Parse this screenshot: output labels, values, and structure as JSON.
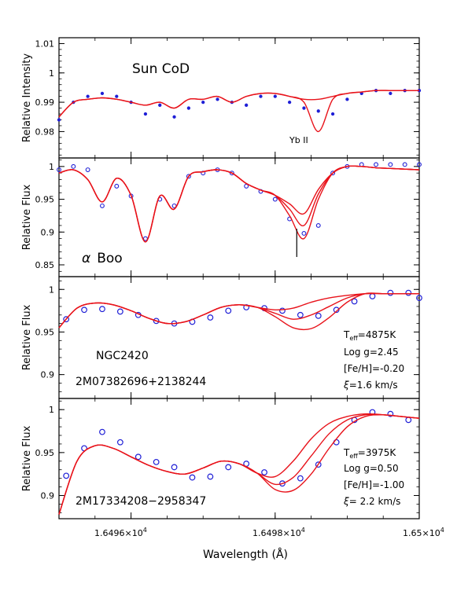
{
  "chart_data": [
    {
      "type": "line",
      "panel": "Sun CoD",
      "label": "Sun CoD",
      "ylabel": "Relative Intensity",
      "ylim": [
        0.971,
        1.012
      ],
      "yticks": [
        0.98,
        0.99,
        1,
        1.01
      ],
      "yticklabels": [
        "0.98",
        "0.99",
        "1",
        "1.01"
      ],
      "annotation": "Yb II",
      "series": [
        {
          "style": "points",
          "x": [
            16495.0,
            16495.2,
            16495.4,
            16495.6,
            16495.8,
            16496.0,
            16496.2,
            16496.4,
            16496.6,
            16496.8,
            16497.0,
            16497.2,
            16497.4,
            16497.6,
            16497.8,
            16498.0,
            16498.2,
            16498.4,
            16498.6,
            16498.8,
            16499.0,
            16499.2,
            16499.4,
            16499.6,
            16499.8,
            16500.0
          ],
          "y": [
            0.984,
            0.99,
            0.992,
            0.993,
            0.992,
            0.99,
            0.986,
            0.989,
            0.985,
            0.988,
            0.99,
            0.991,
            0.99,
            0.989,
            0.992,
            0.992,
            0.99,
            0.988,
            0.987,
            0.986,
            0.991,
            0.993,
            0.994,
            0.993,
            0.994,
            0.994
          ]
        },
        {
          "style": "line",
          "x": [
            16495.0,
            16495.2,
            16495.4,
            16495.6,
            16495.8,
            16496.0,
            16496.2,
            16496.4,
            16496.6,
            16496.8,
            16497.0,
            16497.2,
            16497.4,
            16497.6,
            16497.8,
            16498.0,
            16498.2,
            16498.4,
            16498.6,
            16498.8,
            16499.0,
            16499.2,
            16499.4,
            16499.6,
            16499.8,
            16500.0
          ],
          "y": [
            0.985,
            0.99,
            0.991,
            0.9915,
            0.991,
            0.99,
            0.989,
            0.99,
            0.988,
            0.991,
            0.991,
            0.992,
            0.99,
            0.992,
            0.993,
            0.993,
            0.992,
            0.99,
            0.98,
            0.991,
            0.993,
            0.9935,
            0.994,
            0.994,
            0.994,
            0.994
          ]
        },
        {
          "style": "line",
          "x": [
            16495.0,
            16495.2,
            16495.4,
            16495.6,
            16495.8,
            16496.0,
            16496.2,
            16496.4,
            16496.6,
            16496.8,
            16497.0,
            16497.2,
            16497.4,
            16497.6,
            16497.8,
            16498.0,
            16498.2,
            16498.4,
            16498.6,
            16498.8,
            16499.0,
            16499.2,
            16499.4,
            16499.6,
            16499.8,
            16500.0
          ],
          "y": [
            0.985,
            0.99,
            0.991,
            0.9915,
            0.991,
            0.99,
            0.989,
            0.99,
            0.988,
            0.991,
            0.991,
            0.992,
            0.99,
            0.992,
            0.993,
            0.993,
            0.992,
            0.991,
            0.991,
            0.992,
            0.993,
            0.9935,
            0.994,
            0.994,
            0.994,
            0.994
          ]
        }
      ]
    },
    {
      "type": "line",
      "panel": "alpha Boo",
      "label_symbol": "α",
      "label_text": "Boo",
      "ylabel": "Relative Flux",
      "ylim": [
        0.832,
        1.013
      ],
      "yticks": [
        0.85,
        0.9,
        0.95,
        1
      ],
      "yticklabels": [
        "0.85",
        "0.9",
        "0.95",
        "1"
      ],
      "marker_x": 16498.3,
      "series": [
        {
          "style": "points",
          "x": [
            16495.0,
            16495.2,
            16495.4,
            16495.6,
            16495.8,
            16496.0,
            16496.2,
            16496.4,
            16496.6,
            16496.8,
            16497.0,
            16497.2,
            16497.4,
            16497.6,
            16497.8,
            16498.0,
            16498.2,
            16498.4,
            16498.6,
            16498.8,
            16499.0,
            16499.2,
            16499.4,
            16499.6,
            16499.8,
            16500.0
          ],
          "y": [
            0.995,
            1.0,
            0.995,
            0.94,
            0.97,
            0.955,
            0.89,
            0.95,
            0.94,
            0.985,
            0.99,
            0.995,
            0.99,
            0.97,
            0.962,
            0.95,
            0.92,
            0.898,
            0.91,
            0.99,
            1.0,
            1.003,
            1.003,
            1.003,
            1.003,
            1.003
          ]
        },
        {
          "style": "line",
          "x": [
            16495.0,
            16495.2,
            16495.4,
            16495.6,
            16495.8,
            16496.0,
            16496.2,
            16496.4,
            16496.6,
            16496.8,
            16497.0,
            16497.2,
            16497.4,
            16497.6,
            16497.8,
            16498.0,
            16498.2,
            16498.4,
            16498.6,
            16498.8,
            16499.0,
            16499.2,
            16499.4,
            16499.6,
            16499.8,
            16500.0
          ],
          "y": [
            0.99,
            0.995,
            0.98,
            0.946,
            0.982,
            0.956,
            0.885,
            0.955,
            0.935,
            0.985,
            0.992,
            0.995,
            0.99,
            0.974,
            0.964,
            0.956,
            0.925,
            0.89,
            0.95,
            0.99,
            1.0,
            1.0,
            0.998,
            0.997,
            0.996,
            0.995
          ]
        },
        {
          "style": "line",
          "x": [
            16495.0,
            16495.2,
            16495.4,
            16495.6,
            16495.8,
            16496.0,
            16496.2,
            16496.4,
            16496.6,
            16496.8,
            16497.0,
            16497.2,
            16497.4,
            16497.6,
            16497.8,
            16498.0,
            16498.2,
            16498.4,
            16498.6,
            16498.8,
            16499.0,
            16499.2,
            16499.4,
            16499.6,
            16499.8,
            16500.0
          ],
          "y": [
            0.99,
            0.995,
            0.98,
            0.946,
            0.982,
            0.956,
            0.885,
            0.955,
            0.935,
            0.985,
            0.992,
            0.995,
            0.99,
            0.974,
            0.964,
            0.956,
            0.935,
            0.91,
            0.958,
            0.99,
            1.0,
            1.0,
            0.998,
            0.997,
            0.996,
            0.995
          ]
        },
        {
          "style": "line",
          "x": [
            16495.0,
            16495.2,
            16495.4,
            16495.6,
            16495.8,
            16496.0,
            16496.2,
            16496.4,
            16496.6,
            16496.8,
            16497.0,
            16497.2,
            16497.4,
            16497.6,
            16497.8,
            16498.0,
            16498.2,
            16498.4,
            16498.6,
            16498.8,
            16499.0,
            16499.2,
            16499.4,
            16499.6,
            16499.8,
            16500.0
          ],
          "y": [
            0.99,
            0.995,
            0.98,
            0.946,
            0.982,
            0.956,
            0.885,
            0.955,
            0.935,
            0.985,
            0.992,
            0.995,
            0.99,
            0.974,
            0.964,
            0.956,
            0.943,
            0.928,
            0.965,
            0.99,
            1.0,
            1.0,
            0.998,
            0.997,
            0.996,
            0.995
          ]
        }
      ]
    },
    {
      "type": "line",
      "panel": "NGC2420",
      "label_line1": "NGC2420",
      "label_line2": "2M07382696+2138244",
      "ylabel": "Relative Flux",
      "ylim": [
        0.872,
        1.015
      ],
      "yticks": [
        0.9,
        0.95,
        1
      ],
      "yticklabels": [
        "0.9",
        "0.95",
        "1"
      ],
      "params": {
        "teff_label": "T",
        "teff_sub": "eff",
        "teff_value": "=4875K",
        "logg": "Log g=2.45",
        "feh": "[Fe/H]=-0.20",
        "xi_symbol": "ξ",
        "xi_value": "=1.6 km/s"
      },
      "series": [
        {
          "style": "points",
          "x": [
            16495.1,
            16495.35,
            16495.6,
            16495.85,
            16496.1,
            16496.35,
            16496.6,
            16496.85,
            16497.1,
            16497.35,
            16497.6,
            16497.85,
            16498.1,
            16498.35,
            16498.6,
            16498.85,
            16499.1,
            16499.35,
            16499.6,
            16499.85,
            16500.0
          ],
          "y": [
            0.965,
            0.976,
            0.977,
            0.974,
            0.97,
            0.963,
            0.96,
            0.962,
            0.967,
            0.975,
            0.979,
            0.978,
            0.975,
            0.97,
            0.969,
            0.976,
            0.986,
            0.992,
            0.996,
            0.996,
            0.99
          ]
        },
        {
          "style": "line",
          "x": [
            16495.0,
            16495.25,
            16495.5,
            16495.75,
            16496.0,
            16496.25,
            16496.5,
            16496.75,
            16497.0,
            16497.25,
            16497.5,
            16497.75,
            16498.0,
            16498.25,
            16498.5,
            16498.75,
            16499.0,
            16499.25,
            16499.5,
            16499.75,
            16500.0
          ],
          "y": [
            0.955,
            0.978,
            0.984,
            0.982,
            0.975,
            0.966,
            0.96,
            0.962,
            0.97,
            0.979,
            0.982,
            0.979,
            0.976,
            0.978,
            0.985,
            0.99,
            0.993,
            0.995,
            0.995,
            0.995,
            0.995
          ]
        },
        {
          "style": "line",
          "x": [
            16495.0,
            16495.25,
            16495.5,
            16495.75,
            16496.0,
            16496.25,
            16496.5,
            16496.75,
            16497.0,
            16497.25,
            16497.5,
            16497.75,
            16498.0,
            16498.25,
            16498.5,
            16498.75,
            16499.0,
            16499.25,
            16499.5,
            16499.75,
            16500.0
          ],
          "y": [
            0.955,
            0.978,
            0.984,
            0.982,
            0.975,
            0.966,
            0.96,
            0.962,
            0.97,
            0.979,
            0.982,
            0.979,
            0.972,
            0.965,
            0.97,
            0.98,
            0.99,
            0.995,
            0.995,
            0.995,
            0.995
          ]
        },
        {
          "style": "line",
          "x": [
            16495.0,
            16495.25,
            16495.5,
            16495.75,
            16496.0,
            16496.25,
            16496.5,
            16496.75,
            16497.0,
            16497.25,
            16497.5,
            16497.75,
            16498.0,
            16498.25,
            16498.5,
            16498.75,
            16499.0,
            16499.25,
            16499.5,
            16499.75,
            16500.0
          ],
          "y": [
            0.955,
            0.978,
            0.984,
            0.982,
            0.975,
            0.966,
            0.96,
            0.962,
            0.97,
            0.979,
            0.982,
            0.979,
            0.968,
            0.955,
            0.954,
            0.967,
            0.985,
            0.995,
            0.995,
            0.995,
            0.995
          ]
        }
      ]
    },
    {
      "type": "line",
      "panel": "2M17334208-2958347",
      "label": "2M17334208−2958347",
      "ylabel": "Relative Flux",
      "ylim": [
        0.873,
        1.013
      ],
      "yticks": [
        0.9,
        0.95,
        1
      ],
      "yticklabels": [
        "0.9",
        "0.95",
        "1"
      ],
      "params": {
        "teff_label": "T",
        "teff_sub": "eff",
        "teff_value": "=3975K",
        "logg": "Log g=0.50",
        "feh": "[Fe/H]=-1.00",
        "xi_symbol": "ξ",
        "xi_value": "= 2.2 km/s"
      },
      "series": [
        {
          "style": "points",
          "x": [
            16495.1,
            16495.35,
            16495.6,
            16495.85,
            16496.1,
            16496.35,
            16496.6,
            16496.85,
            16497.1,
            16497.35,
            16497.6,
            16497.85,
            16498.1,
            16498.35,
            16498.6,
            16498.85,
            16499.1,
            16499.35,
            16499.6,
            16499.85
          ],
          "y": [
            0.923,
            0.955,
            0.974,
            0.962,
            0.945,
            0.939,
            0.933,
            0.921,
            0.922,
            0.933,
            0.937,
            0.927,
            0.914,
            0.92,
            0.936,
            0.962,
            0.988,
            0.997,
            0.995,
            0.988
          ]
        },
        {
          "style": "line",
          "x": [
            16495.0,
            16495.25,
            16495.5,
            16495.75,
            16496.0,
            16496.25,
            16496.5,
            16496.75,
            16497.0,
            16497.25,
            16497.5,
            16497.75,
            16498.0,
            16498.25,
            16498.5,
            16498.75,
            16499.0,
            16499.25,
            16499.5,
            16499.75,
            16500.0
          ],
          "y": [
            0.878,
            0.94,
            0.958,
            0.955,
            0.945,
            0.935,
            0.928,
            0.925,
            0.932,
            0.94,
            0.937,
            0.926,
            0.922,
            0.94,
            0.966,
            0.984,
            0.992,
            0.995,
            0.994,
            0.992,
            0.99
          ]
        },
        {
          "style": "line",
          "x": [
            16495.0,
            16495.25,
            16495.5,
            16495.75,
            16496.0,
            16496.25,
            16496.5,
            16496.75,
            16497.0,
            16497.25,
            16497.5,
            16497.75,
            16498.0,
            16498.25,
            16498.5,
            16498.75,
            16499.0,
            16499.25,
            16499.5,
            16499.75,
            16500.0
          ],
          "y": [
            0.878,
            0.94,
            0.958,
            0.955,
            0.945,
            0.935,
            0.928,
            0.925,
            0.932,
            0.94,
            0.937,
            0.926,
            0.913,
            0.921,
            0.946,
            0.972,
            0.988,
            0.994,
            0.994,
            0.992,
            0.99
          ]
        },
        {
          "style": "line",
          "x": [
            16495.0,
            16495.25,
            16495.5,
            16495.75,
            16496.0,
            16496.25,
            16496.5,
            16496.75,
            16497.0,
            16497.25,
            16497.5,
            16497.75,
            16498.0,
            16498.25,
            16498.5,
            16498.75,
            16499.0,
            16499.25,
            16499.5,
            16499.75,
            16500.0
          ],
          "y": [
            0.878,
            0.94,
            0.958,
            0.955,
            0.945,
            0.935,
            0.928,
            0.925,
            0.932,
            0.94,
            0.937,
            0.926,
            0.907,
            0.906,
            0.925,
            0.955,
            0.98,
            0.992,
            0.994,
            0.992,
            0.99
          ]
        }
      ]
    }
  ],
  "xaxis": {
    "label": "Wavelength (Å)",
    "xlim": [
      16495.0,
      16500.0
    ],
    "ticks": [
      16496.0,
      16498.0,
      16500.0
    ],
    "tick_mantissa": [
      "1.6496×10",
      "1.6498×10",
      "1.65×10"
    ],
    "tick_exponent": [
      "4",
      "4",
      "4"
    ]
  },
  "colors": {
    "data": "#1f1fd6",
    "model": "#e8121a",
    "axis": "#000000"
  }
}
